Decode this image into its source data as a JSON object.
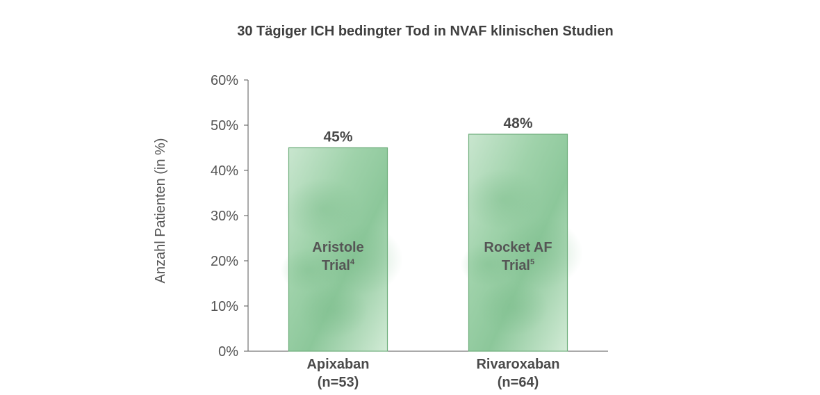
{
  "chart_data": {
    "type": "bar",
    "title": "30 Tägiger ICH bedingter Tod in NVAF klinischen Studien",
    "xlabel": "",
    "ylabel": "Anzahl Patienten (in %)",
    "ylim": [
      0,
      60
    ],
    "yticks": [
      "0%",
      "10%",
      "20%",
      "30%",
      "40%",
      "50%",
      "60%"
    ],
    "ytick_values": [
      0,
      10,
      20,
      30,
      40,
      50,
      60
    ],
    "grid": false,
    "bar_color": "#8cc79a",
    "bar_border_color": "#6fae7c",
    "categories": [
      {
        "label_line1": "Apixaban",
        "label_line2": "(n=53)"
      },
      {
        "label_line1": "Rivaroxaban",
        "label_line2": "(n=64)"
      }
    ],
    "values": [
      45,
      48
    ],
    "value_labels": [
      "45%",
      "48%"
    ],
    "bar_annotations": [
      {
        "line1": "Aristole",
        "line2": "Trial",
        "sup": "4"
      },
      {
        "line1": "Rocket AF",
        "line2": "Trial",
        "sup": "5"
      }
    ]
  }
}
